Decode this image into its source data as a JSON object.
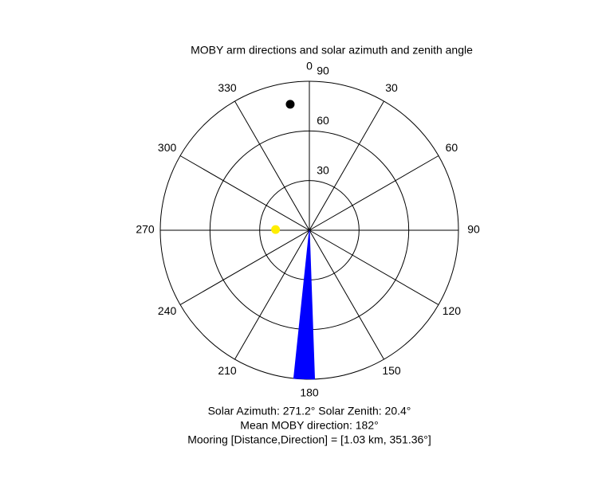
{
  "chart_data": {
    "type": "polar",
    "title": "MOBY arm directions and solar azimuth and zenith angle",
    "rlim": [
      0,
      90
    ],
    "rticks": [
      30,
      60,
      90
    ],
    "thetaticks": [
      0,
      30,
      60,
      90,
      120,
      150,
      180,
      210,
      240,
      270,
      300,
      330
    ],
    "points": [
      {
        "azimuth": 271.2,
        "r": 20.4,
        "color": "#ffee00"
      },
      {
        "azimuth": 351.36,
        "r": 77,
        "color": "#000000"
      }
    ],
    "wedge": {
      "from": 178,
      "to": 186,
      "r": 90,
      "color": "#0000ff"
    },
    "footer": [
      "Solar Azimuth: 271.2°   Solar Zenith: 20.4°",
      "Mean MOBY direction: 182°",
      "Mooring [Distance,Direction] = [1.03 km, 351.36°]"
    ]
  }
}
